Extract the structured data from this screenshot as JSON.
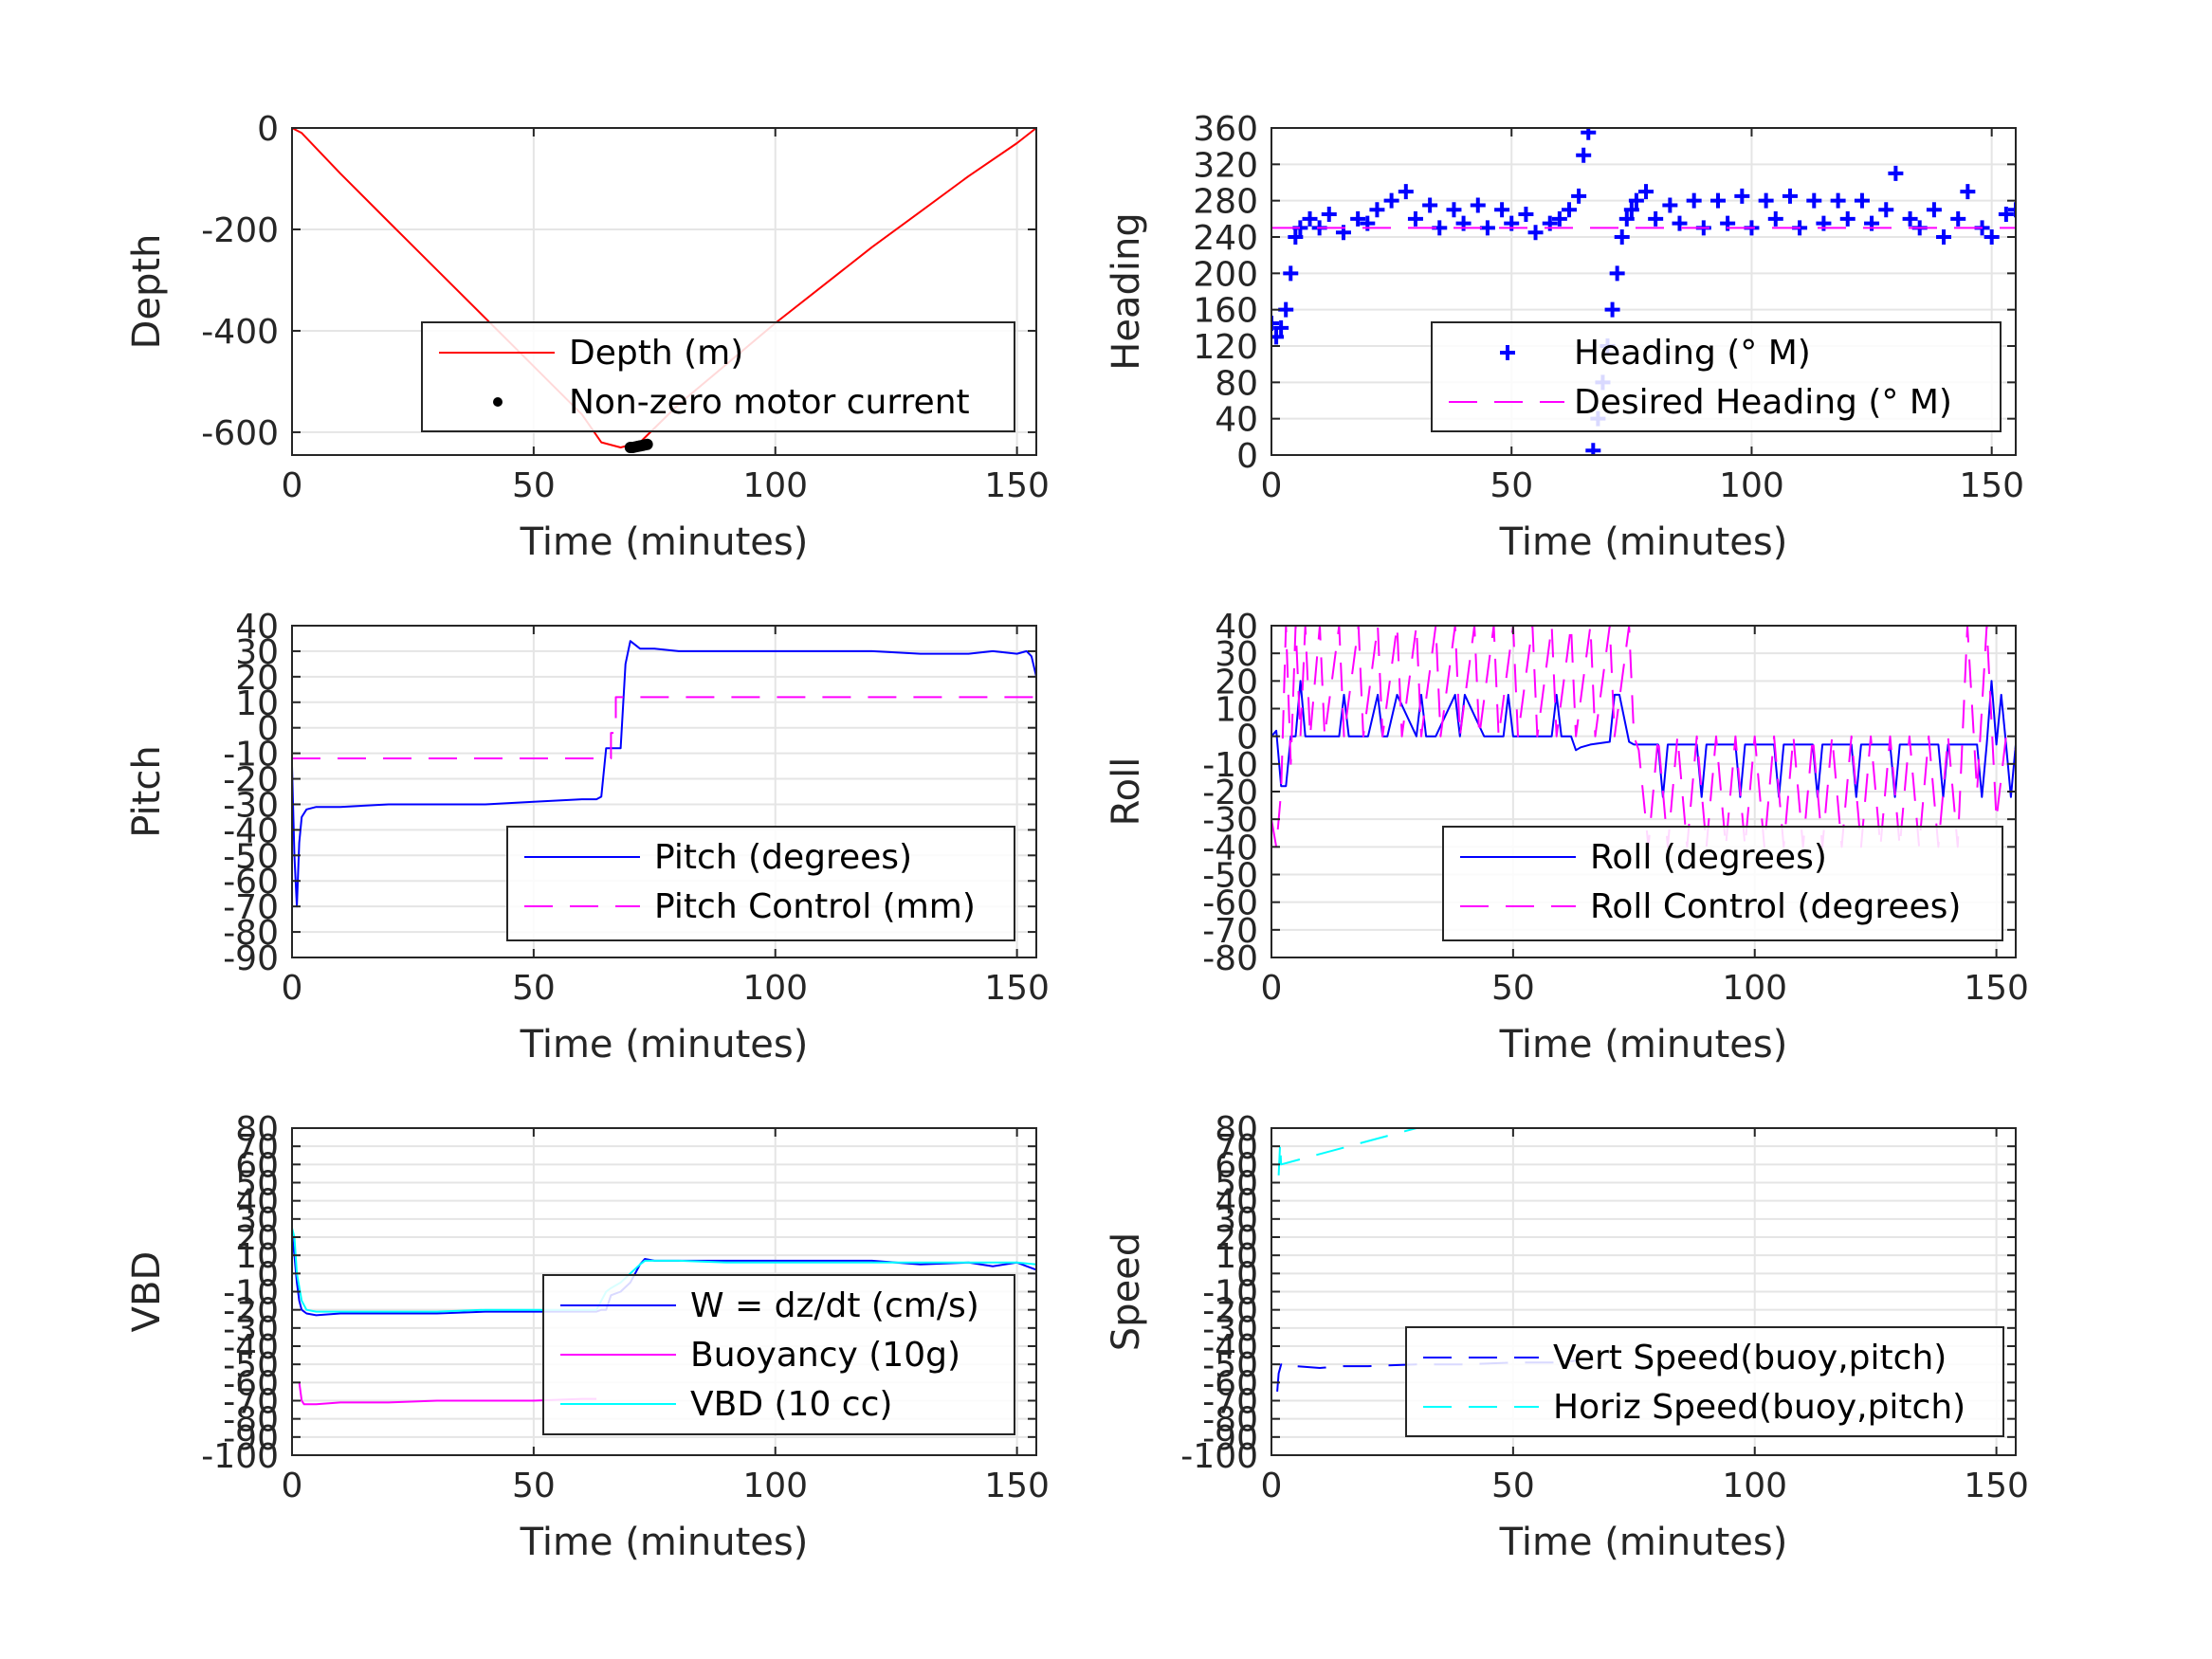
{
  "colors": {
    "red": "#ff0000",
    "blue": "#0000ff",
    "magenta": "#ff00ff",
    "cyan": "#00ffff",
    "black": "#000000",
    "grid": "#e5e5e5",
    "axis": "#262626"
  },
  "chart_data": [
    {
      "type": "line",
      "ylabel": "Depth",
      "xlabel": "Time (minutes)",
      "xlim": [
        0,
        154
      ],
      "ylim": [
        -645,
        0
      ],
      "xticks": [
        0,
        50,
        100,
        150
      ],
      "yticks": [
        0,
        -200,
        -400,
        -600
      ],
      "grid": true,
      "legend_position": "lower-right",
      "series": [
        {
          "name": "Depth (m)",
          "color": "red",
          "style": "solid",
          "x": [
            0,
            2,
            10,
            20,
            30,
            40,
            50,
            60,
            64,
            68,
            72,
            80,
            90,
            100,
            110,
            120,
            130,
            140,
            150,
            154
          ],
          "y": [
            0,
            -10,
            -90,
            -185,
            -280,
            -375,
            -470,
            -565,
            -620,
            -630,
            -620,
            -545,
            -465,
            -385,
            -310,
            -235,
            -165,
            -95,
            -30,
            0
          ]
        },
        {
          "name": "Non-zero motor current",
          "color": "black",
          "style": "dots",
          "x": [
            70,
            70.5,
            71,
            71.5,
            72,
            72.5,
            73,
            73.5
          ],
          "y": [
            -630,
            -630,
            -629,
            -628,
            -627,
            -626,
            -625,
            -624
          ]
        }
      ]
    },
    {
      "type": "line",
      "ylabel": "Heading",
      "xlabel": "Time (minutes)",
      "xlim": [
        0,
        155
      ],
      "ylim": [
        0,
        360
      ],
      "xticks": [
        0,
        50,
        100,
        150
      ],
      "yticks": [
        0,
        40,
        80,
        120,
        160,
        200,
        240,
        280,
        320,
        360
      ],
      "grid": true,
      "legend_position": "lower-right",
      "series": [
        {
          "name": "Heading (° M)",
          "color": "blue",
          "style": "plus",
          "x": [
            0,
            1,
            2,
            3,
            4,
            5,
            6,
            8,
            10,
            12,
            15,
            18,
            20,
            22,
            25,
            28,
            30,
            33,
            35,
            38,
            40,
            43,
            45,
            48,
            50,
            53,
            55,
            58,
            60,
            62,
            64,
            65,
            66,
            67,
            68,
            69,
            70,
            71,
            72,
            73,
            74,
            75,
            76,
            78,
            80,
            83,
            85,
            88,
            90,
            93,
            95,
            98,
            100,
            103,
            105,
            108,
            110,
            113,
            115,
            118,
            120,
            123,
            125,
            128,
            130,
            133,
            135,
            138,
            140,
            143,
            145,
            148,
            150,
            153,
            155
          ],
          "y": [
            145,
            130,
            140,
            160,
            200,
            240,
            250,
            260,
            250,
            265,
            245,
            260,
            255,
            270,
            280,
            290,
            260,
            275,
            250,
            270,
            255,
            275,
            250,
            270,
            255,
            265,
            245,
            255,
            260,
            270,
            285,
            330,
            355,
            5,
            40,
            80,
            120,
            160,
            200,
            240,
            260,
            270,
            280,
            290,
            260,
            275,
            255,
            280,
            250,
            280,
            255,
            285,
            250,
            280,
            260,
            285,
            250,
            280,
            255,
            280,
            260,
            280,
            255,
            270,
            310,
            260,
            250,
            270,
            240,
            260,
            290,
            250,
            240,
            265,
            270
          ]
        },
        {
          "name": "Desired Heading (° M)",
          "color": "magenta",
          "style": "dashed",
          "x": [
            0,
            155
          ],
          "y": [
            250,
            250
          ]
        }
      ]
    },
    {
      "type": "line",
      "ylabel": "Pitch",
      "xlabel": "Time (minutes)",
      "xlim": [
        0,
        154
      ],
      "ylim": [
        -90,
        40
      ],
      "xticks": [
        0,
        50,
        100,
        150
      ],
      "yticks": [
        40,
        30,
        20,
        10,
        0,
        -10,
        -20,
        -30,
        -40,
        -50,
        -60,
        -70,
        -80,
        -90
      ],
      "grid": true,
      "legend_position": "lower-right",
      "series": [
        {
          "name": "Pitch (degrees)",
          "color": "blue",
          "style": "solid",
          "x": [
            0,
            0.5,
            1,
            1.5,
            2,
            3,
            5,
            10,
            20,
            30,
            40,
            50,
            60,
            63,
            64,
            65,
            68,
            69,
            70,
            72,
            75,
            80,
            90,
            100,
            110,
            120,
            130,
            135,
            140,
            145,
            150,
            152,
            153,
            154
          ],
          "y": [
            -15,
            -50,
            -70,
            -45,
            -35,
            -32,
            -31,
            -31,
            -30,
            -30,
            -30,
            -29,
            -28,
            -28,
            -27,
            -8,
            -8,
            25,
            34,
            31,
            31,
            30,
            30,
            30,
            30,
            30,
            29,
            29,
            29,
            30,
            29,
            30,
            28,
            20
          ]
        },
        {
          "name": "Pitch Control (mm)",
          "color": "magenta",
          "style": "dashed",
          "x": [
            0,
            62,
            62,
            66,
            66,
            67,
            67,
            154
          ],
          "y": [
            -12,
            -12,
            -12,
            -12,
            -2,
            -2,
            12,
            12
          ]
        }
      ]
    },
    {
      "type": "line",
      "ylabel": "Roll",
      "xlabel": "Time (minutes)",
      "xlim": [
        0,
        154
      ],
      "ylim": [
        -80,
        40
      ],
      "xticks": [
        0,
        50,
        100,
        150
      ],
      "yticks": [
        40,
        30,
        20,
        10,
        0,
        -10,
        -20,
        -30,
        -40,
        -50,
        -60,
        -70,
        -80
      ],
      "grid": true,
      "legend_position": "lower-right",
      "series": [
        {
          "name": "Roll (degrees)",
          "color": "blue",
          "style": "solid",
          "x": [
            0,
            1,
            2,
            3,
            4,
            5,
            6,
            7,
            8,
            9,
            10,
            14,
            15,
            16,
            20,
            22,
            23,
            24,
            26,
            30,
            31,
            32,
            34,
            38,
            39,
            40,
            44,
            48,
            49,
            50,
            54,
            58,
            59,
            60,
            62,
            63,
            64,
            66,
            70,
            71,
            72,
            74,
            75,
            76,
            77,
            80,
            81,
            82,
            84,
            88,
            89,
            90,
            92,
            96,
            97,
            98,
            100,
            104,
            105,
            106,
            108,
            112,
            113,
            114,
            116,
            120,
            121,
            122,
            124,
            128,
            129,
            130,
            134,
            138,
            139,
            140,
            144,
            146,
            147,
            148,
            149,
            150,
            151,
            152,
            153,
            154
          ],
          "y": [
            0,
            2,
            -18,
            -18,
            0,
            0,
            20,
            0,
            0,
            0,
            0,
            0,
            15,
            0,
            0,
            15,
            0,
            0,
            15,
            0,
            15,
            0,
            0,
            15,
            0,
            15,
            0,
            0,
            15,
            0,
            0,
            0,
            15,
            0,
            0,
            -5,
            -4,
            -3,
            -2,
            15,
            15,
            -2,
            -3,
            -3,
            -3,
            -3,
            -22,
            -3,
            -3,
            -3,
            -22,
            -3,
            -3,
            -3,
            -22,
            -3,
            -3,
            -3,
            -22,
            -3,
            -3,
            -3,
            -22,
            -3,
            -3,
            -3,
            -22,
            -3,
            -3,
            -3,
            -22,
            -3,
            -3,
            -3,
            -22,
            -3,
            -3,
            -3,
            -22,
            -3,
            20,
            -3,
            15,
            -3,
            -22,
            -3
          ]
        },
        {
          "name": "Roll Control (degrees)",
          "color": "magenta",
          "style": "dashed",
          "x": [
            0,
            1,
            2,
            3,
            4,
            5,
            6,
            7,
            8,
            10,
            11,
            14,
            15,
            18,
            19,
            22,
            23,
            26,
            27,
            30,
            31,
            34,
            35,
            38,
            39,
            42,
            43,
            46,
            47,
            50,
            51,
            54,
            55,
            58,
            59,
            62,
            63,
            66,
            67,
            70,
            71,
            74,
            75,
            76,
            78,
            80,
            82,
            84,
            86,
            88,
            90,
            92,
            94,
            96,
            98,
            100,
            102,
            104,
            106,
            108,
            110,
            112,
            114,
            116,
            118,
            120,
            122,
            124,
            126,
            128,
            130,
            132,
            134,
            136,
            138,
            140,
            142,
            144,
            146,
            148,
            150,
            152,
            154
          ],
          "y": [
            -30,
            -40,
            -20,
            40,
            -10,
            40,
            0,
            40,
            0,
            40,
            0,
            40,
            0,
            40,
            0,
            40,
            0,
            40,
            0,
            40,
            0,
            40,
            0,
            40,
            0,
            40,
            0,
            40,
            0,
            40,
            0,
            40,
            0,
            40,
            0,
            40,
            0,
            40,
            0,
            40,
            0,
            40,
            0,
            -5,
            -40,
            0,
            -40,
            0,
            -40,
            0,
            -40,
            0,
            -40,
            0,
            -40,
            0,
            -40,
            0,
            -40,
            0,
            -40,
            0,
            -40,
            0,
            -40,
            0,
            -40,
            0,
            -40,
            0,
            -40,
            0,
            -40,
            0,
            -40,
            0,
            -40,
            40,
            -20,
            40,
            -30,
            0,
            -5
          ]
        }
      ]
    },
    {
      "type": "line",
      "ylabel": "VBD",
      "xlabel": "Time (minutes)",
      "xlim": [
        0,
        154
      ],
      "ylim": [
        -100,
        80
      ],
      "xticks": [
        0,
        50,
        100,
        150
      ],
      "yticks": [
        80,
        70,
        60,
        50,
        40,
        30,
        20,
        10,
        0,
        -10,
        -20,
        -30,
        -40,
        -50,
        -60,
        -70,
        -80,
        -90,
        -100
      ],
      "ytick_labels": [
        "80",
        "70",
        "60",
        "50",
        "40",
        "30",
        "20",
        "10",
        "0",
        "-10",
        "-20",
        "-30",
        "-40",
        "-50",
        "-60",
        "-70",
        "-80",
        "-90",
        "-100"
      ],
      "grid": true,
      "legend_position": "lower-right",
      "series": [
        {
          "name": "W = dz/dt (cm/s)",
          "color": "blue",
          "style": "solid",
          "x": [
            0,
            0.5,
            1,
            1.5,
            2,
            3,
            5,
            10,
            20,
            30,
            40,
            50,
            60,
            63,
            64,
            65,
            66,
            68,
            70,
            72,
            73,
            75,
            80,
            90,
            100,
            110,
            120,
            130,
            140,
            145,
            150,
            152,
            154
          ],
          "y": [
            22,
            10,
            -5,
            -15,
            -20,
            -22,
            -23,
            -22,
            -22,
            -22,
            -21,
            -21,
            -21,
            -21,
            -20,
            -20,
            -12,
            -10,
            -5,
            5,
            8,
            7,
            7,
            7,
            7,
            7,
            7,
            5,
            6,
            4,
            6,
            4,
            2
          ]
        },
        {
          "name": "Buoyancy (10g)",
          "color": "magenta",
          "style": "solid",
          "x": [
            1.5,
            2,
            2.5,
            5,
            10,
            20,
            30,
            40,
            50,
            60,
            63
          ],
          "y": [
            -60,
            -70,
            -72,
            -72,
            -71,
            -71,
            -70,
            -70,
            -70,
            -69,
            -69
          ]
        },
        {
          "name": "VBD (10 cc)",
          "color": "cyan",
          "style": "solid",
          "x": [
            0,
            0.5,
            1,
            2,
            3,
            5,
            10,
            20,
            30,
            40,
            50,
            60,
            63,
            64,
            65,
            66,
            68,
            70,
            72,
            73,
            75,
            80,
            90,
            100,
            110,
            120,
            130,
            140,
            150,
            154
          ],
          "y": [
            25,
            20,
            0,
            -15,
            -20,
            -21,
            -21,
            -21,
            -21,
            -20,
            -20,
            -20,
            -20,
            -15,
            -10,
            -8,
            -5,
            0,
            5,
            7,
            7,
            7,
            6,
            6,
            6,
            6,
            6,
            6,
            6,
            5
          ]
        }
      ]
    },
    {
      "type": "line",
      "ylabel": "Speed",
      "xlabel": "Time (minutes)",
      "xlim": [
        0,
        154
      ],
      "ylim": [
        -100,
        80
      ],
      "xticks": [
        0,
        50,
        100,
        150
      ],
      "yticks": [
        80,
        70,
        60,
        50,
        40,
        30,
        20,
        10,
        0,
        -10,
        -20,
        -30,
        -40,
        -50,
        -60,
        -70,
        -80,
        -90,
        -100
      ],
      "ytick_labels": [
        "80",
        "70",
        "60",
        "50",
        "40",
        "30",
        "20",
        "10",
        "0",
        "-10",
        "-20",
        "-30",
        "-40",
        "-50",
        "-60",
        "-70",
        "-80",
        "-90",
        "-100"
      ],
      "grid": true,
      "legend_position": "lower-right",
      "series": [
        {
          "name": "Vert Speed(buoy,pitch)",
          "color": "blue",
          "style": "dashed",
          "x": [
            1.2,
            1.5,
            2,
            3,
            5,
            10,
            15,
            20,
            30,
            40,
            50,
            55,
            60,
            63
          ],
          "y": [
            -65,
            -55,
            -50,
            -52,
            -51,
            -52,
            -51,
            -51,
            -50,
            -50,
            -49,
            -49,
            -49,
            -48
          ]
        },
        {
          "name": "Horiz Speed(buoy,pitch)",
          "color": "cyan",
          "style": "dashed",
          "x": [
            1.5,
            1.8,
            2,
            30,
            40,
            50,
            60,
            63
          ],
          "y": [
            54,
            72,
            60,
            80,
            80,
            80,
            80,
            80
          ]
        }
      ]
    }
  ]
}
